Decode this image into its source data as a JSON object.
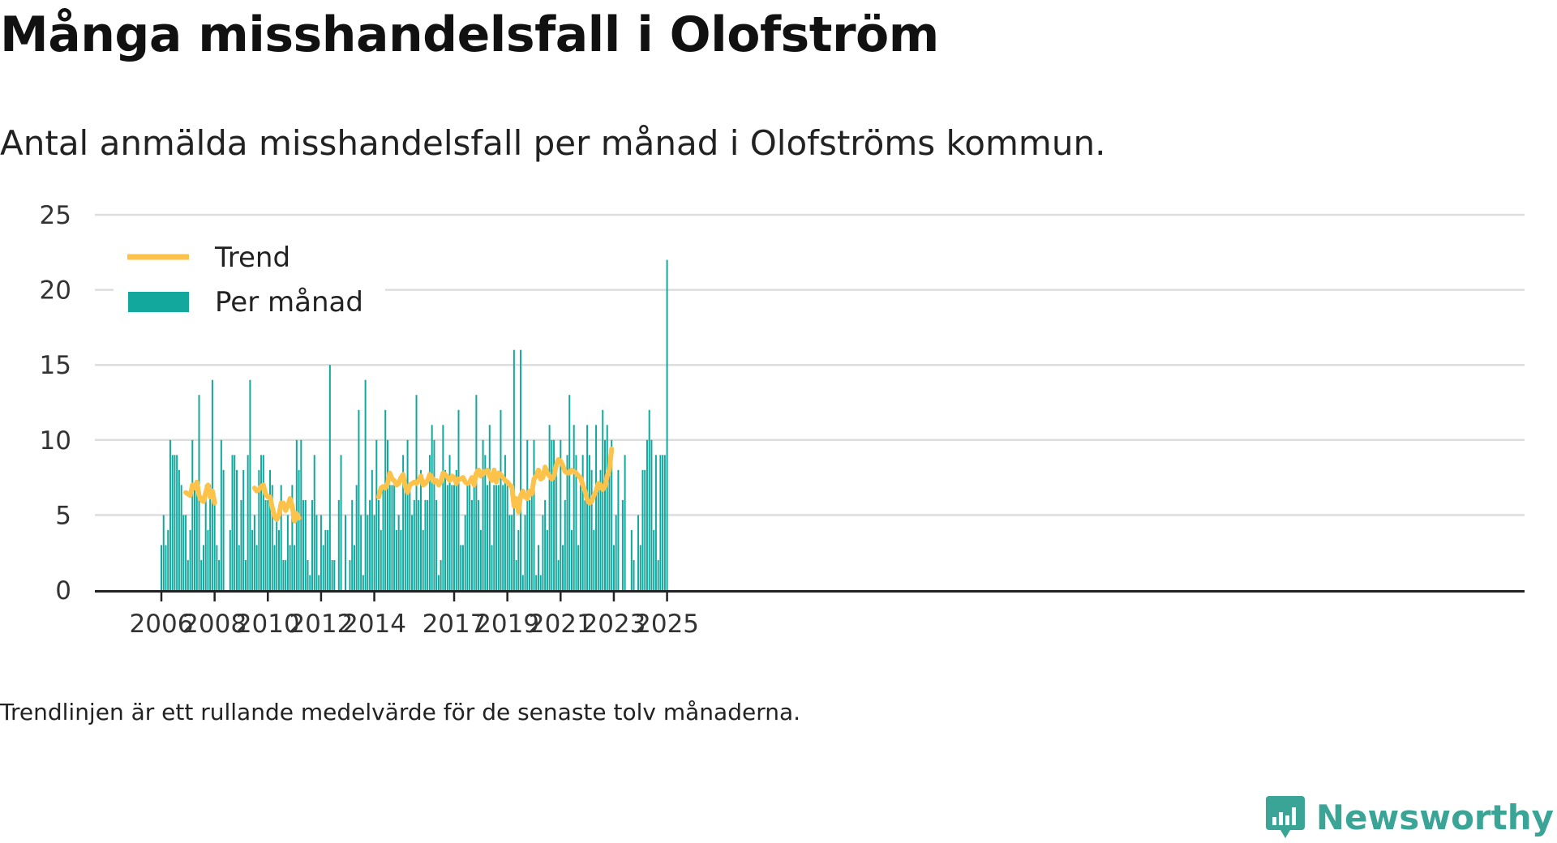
{
  "title": "Många misshandelsfall i Olofström",
  "subtitle": "Antal anmälda misshandelsfall per månad i Olofströms kommun.",
  "footnote": "Trendlinjen är ett rullande medelvärde för de senaste tolv månaderna.",
  "brand": {
    "name": "Newsworthy",
    "logo_icon": "bar-chart-speech-bubble-icon",
    "color": "#3aa597"
  },
  "chart_data": {
    "type": "bar",
    "ylim": [
      0,
      25
    ],
    "yticks": [
      0,
      5,
      10,
      15,
      20,
      25
    ],
    "xticks": [
      "2006",
      "2008",
      "2010",
      "2012",
      "2014",
      "2017",
      "2019",
      "2021",
      "2023",
      "2025"
    ],
    "start_month": "2006-01",
    "grid": true,
    "legend_position": "top-left",
    "colors": {
      "bars": "#13a89e",
      "trend": "#fdc24a",
      "grid": "#dddddd",
      "axis": "#222222"
    },
    "series": [
      {
        "name": "Per månad",
        "type": "bar",
        "values": [
          3,
          5,
          3,
          4,
          10,
          9,
          9,
          9,
          8,
          7,
          5,
          5,
          2,
          4,
          10,
          7,
          7,
          13,
          2,
          3,
          7,
          4,
          7,
          14,
          6,
          3,
          2,
          10,
          8,
          0,
          null,
          4,
          9,
          9,
          8,
          3,
          6,
          8,
          2,
          9,
          14,
          4,
          5,
          3,
          8,
          9,
          9,
          6,
          6,
          8,
          7,
          3,
          5,
          4,
          7,
          2,
          2,
          5,
          3,
          7,
          3,
          10,
          8,
          10,
          6,
          6,
          2,
          1,
          6,
          9,
          5,
          1,
          5,
          3,
          4,
          4,
          15,
          2,
          2,
          null,
          6,
          9,
          0,
          5,
          0,
          2,
          6,
          3,
          7,
          12,
          5,
          1,
          14,
          5,
          6,
          8,
          5,
          10,
          6,
          4,
          7,
          12,
          10,
          7,
          7,
          7,
          4,
          5,
          4,
          9,
          7,
          10,
          7,
          5,
          6,
          13,
          6,
          8,
          4,
          6,
          6,
          9,
          11,
          10,
          6,
          1,
          2,
          11,
          8,
          7,
          9,
          7,
          7,
          8,
          12,
          3,
          3,
          5,
          7,
          7,
          6,
          7,
          13,
          6,
          4,
          10,
          9,
          7,
          11,
          3,
          7,
          7,
          7,
          12,
          7,
          9,
          7,
          5,
          5,
          16,
          2,
          4,
          16,
          1,
          5,
          10,
          6,
          7,
          10,
          1,
          3,
          1,
          5,
          6,
          4,
          11,
          10,
          10,
          8,
          2,
          10,
          3,
          6,
          9,
          13,
          4,
          11,
          9,
          3,
          7,
          9,
          6,
          11,
          9,
          8,
          4,
          11,
          7,
          8,
          12,
          10,
          11,
          8,
          10,
          3,
          5,
          8,
          0,
          6,
          9,
          null,
          null,
          4,
          2,
          null,
          5,
          3,
          8,
          8,
          10,
          12,
          10,
          4,
          9,
          2,
          9,
          9,
          9,
          22
        ]
      },
      {
        "name": "Trend",
        "type": "line",
        "values": [
          null,
          null,
          null,
          null,
          null,
          null,
          null,
          null,
          null,
          null,
          null,
          6.5,
          6.4,
          6.3,
          7.0,
          6.8,
          7.2,
          6.3,
          6.0,
          5.9,
          6.5,
          7.0,
          6.2,
          6.6,
          5.8,
          null,
          null,
          null,
          null,
          null,
          null,
          null,
          null,
          null,
          null,
          null,
          null,
          null,
          null,
          null,
          null,
          null,
          6.8,
          6.6,
          6.7,
          6.9,
          7.0,
          6.4,
          6.2,
          6.2,
          5.5,
          4.9,
          4.7,
          5.0,
          5.8,
          5.8,
          5.3,
          5.6,
          6.1,
          5.6,
          4.6,
          5.1,
          4.8,
          null,
          null,
          null,
          null,
          null,
          null,
          null,
          null,
          null,
          null,
          null,
          null,
          null,
          null,
          null,
          null,
          null,
          null,
          null,
          null,
          null,
          null,
          null,
          null,
          null,
          null,
          null,
          null,
          null,
          null,
          null,
          null,
          null,
          null,
          null,
          6.2,
          6.8,
          6.9,
          6.8,
          7.1,
          7.8,
          7.4,
          7.3,
          7.0,
          7.1,
          7.5,
          7.7,
          6.9,
          6.5,
          7.0,
          7.1,
          7.2,
          7.1,
          7.3,
          7.6,
          7.0,
          7.1,
          7.3,
          7.7,
          7.5,
          7.2,
          7.3,
          7.0,
          7.2,
          7.8,
          7.7,
          7.5,
          7.3,
          7.6,
          7.5,
          7.1,
          7.4,
          7.4,
          7.5,
          7.2,
          7.1,
          7.2,
          7.5,
          7.0,
          7.8,
          8.0,
          7.6,
          7.9,
          7.8,
          8.0,
          7.6,
          7.3,
          8.0,
          7.2,
          7.8,
          7.7,
          7.5,
          7.3,
          7.2,
          7.0,
          6.9,
          5.6,
          6.1,
          5.2,
          6.3,
          6.6,
          6.2,
          6.1,
          6.6,
          6.4,
          7.4,
          7.6,
          8.0,
          7.4,
          7.5,
          8.2,
          7.8,
          7.6,
          7.4,
          7.6,
          8.3,
          8.7,
          8.6,
          8.3,
          7.9,
          7.8,
          7.8,
          8.0,
          7.9,
          7.8,
          7.6,
          7.5,
          7.0,
          6.6,
          6.0,
          5.8,
          5.9,
          6.3,
          6.6,
          7.1,
          7.0,
          6.7,
          6.9,
          7.6,
          8.0,
          9.4
        ]
      }
    ]
  }
}
